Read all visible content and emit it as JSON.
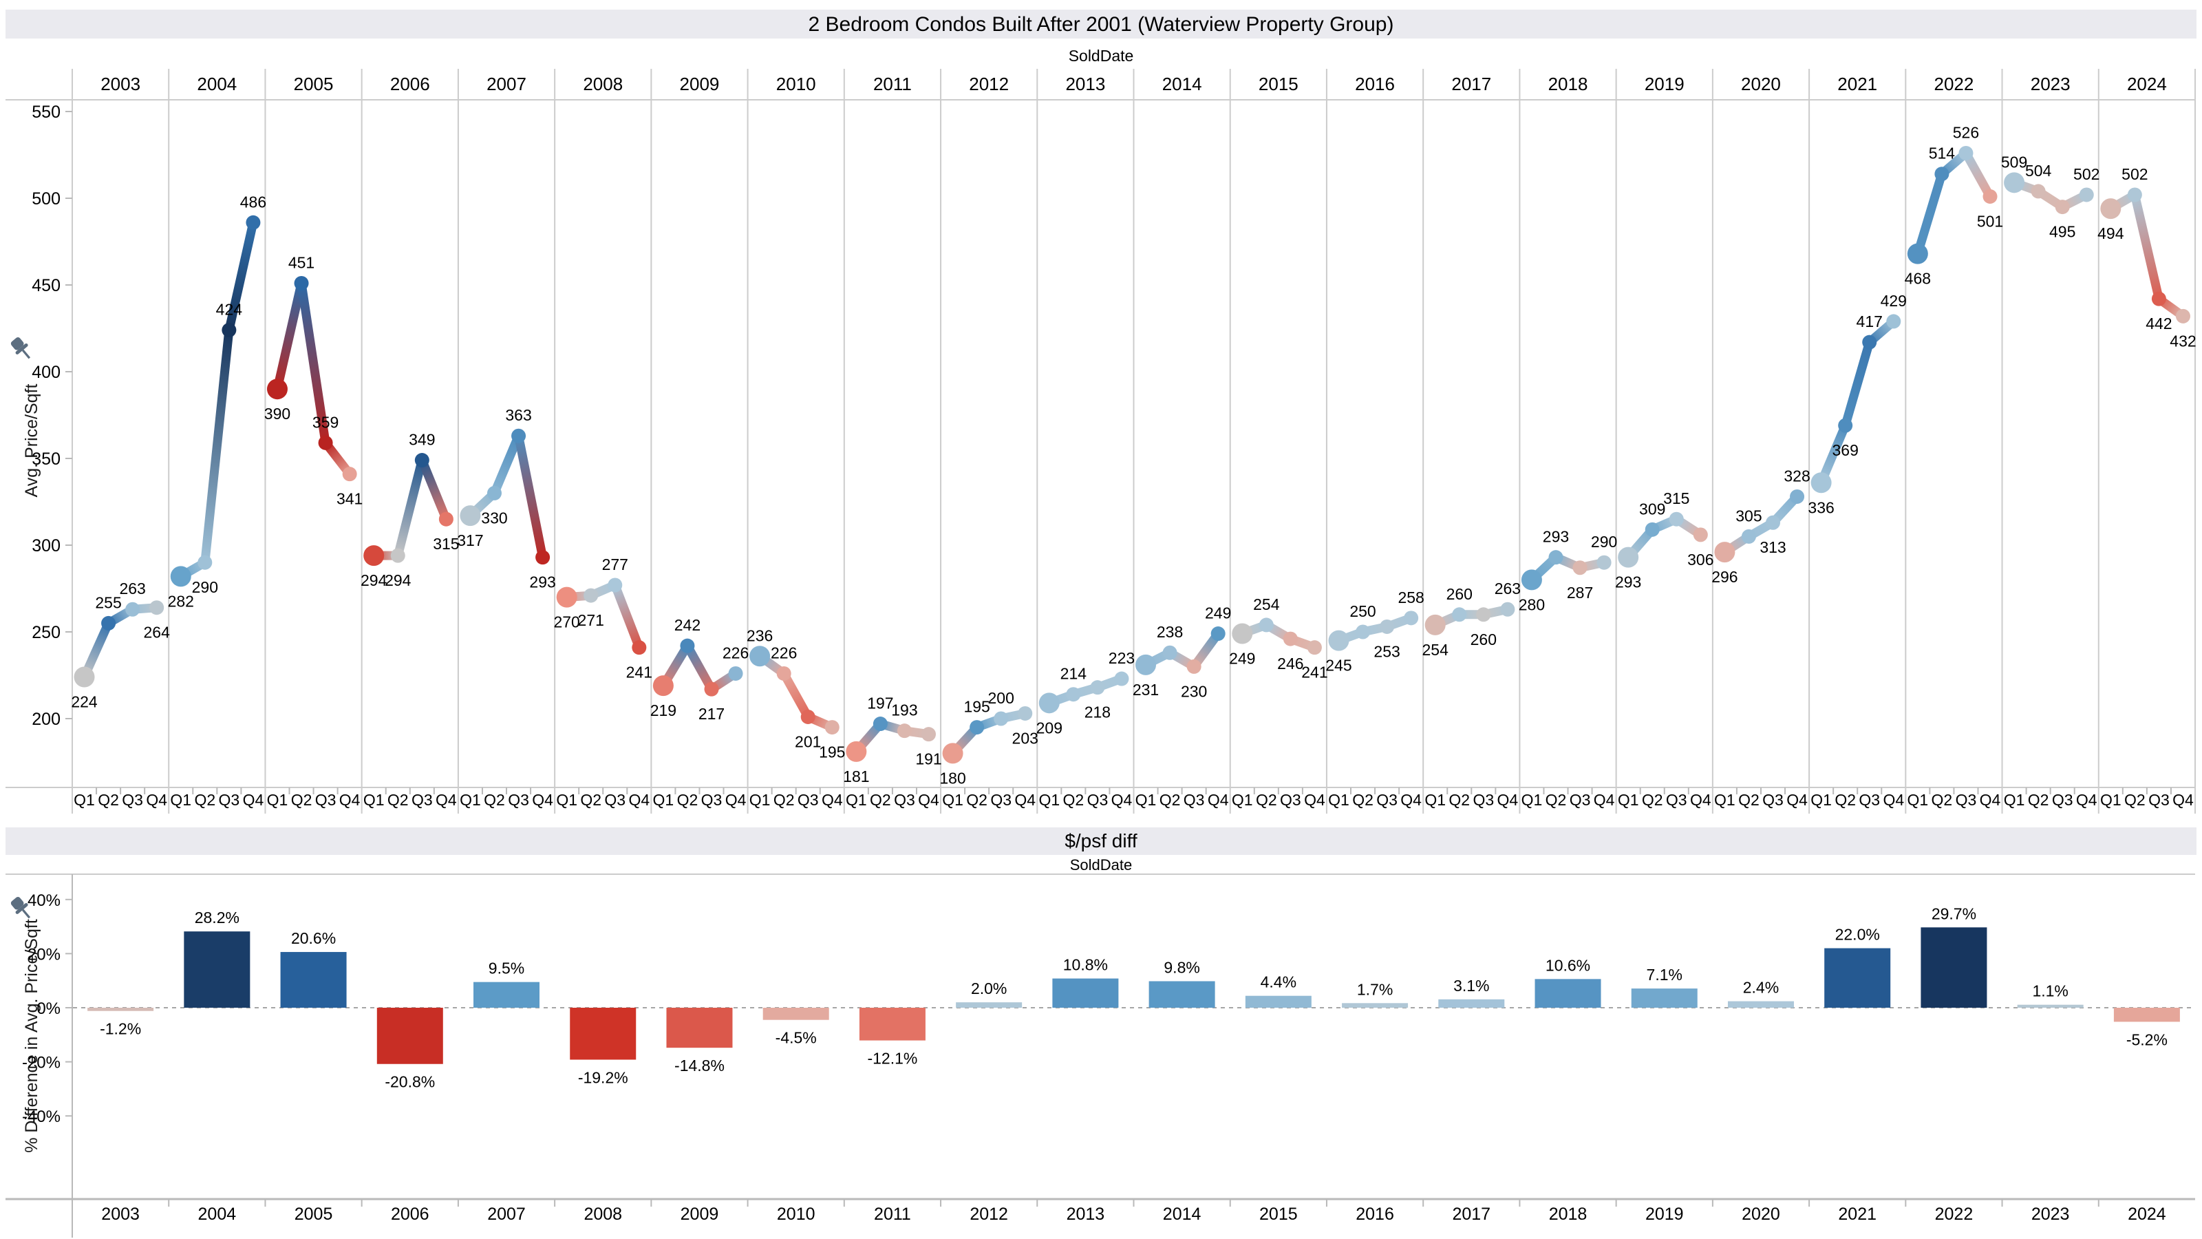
{
  "ui": {
    "pin_icon": "pin-icon",
    "colors": {
      "neutral": "#c6c6c6",
      "band_bg": "#eaeaef",
      "separator": "#cccccc",
      "axis": "#b9b9b9",
      "zero_line": "#a6a6a6",
      "pin": "#5c6e80",
      "pos_anchors": [
        [
          0,
          "#c6c6c6"
        ],
        [
          0.3,
          "#aac7da"
        ],
        [
          0.55,
          "#5f9ec9"
        ],
        [
          0.8,
          "#2a67a5"
        ],
        [
          1,
          "#17355d"
        ]
      ],
      "neg_anchors": [
        [
          0,
          "#c6c6c6"
        ],
        [
          0.3,
          "#ddb6ad"
        ],
        [
          0.55,
          "#ee9384"
        ],
        [
          0.8,
          "#cf3327"
        ],
        [
          1,
          "#a3141a"
        ]
      ]
    }
  },
  "chart_data": [
    {
      "type": "line",
      "title": "2 Bedroom Condos Built After 2001 (Waterview Property Group)",
      "x_header": "SoldDate",
      "ylabel": "Avg. Price/Sqft",
      "ylim": [
        200,
        550
      ],
      "yticks": [
        550,
        500,
        450,
        400,
        350,
        300,
        250,
        200
      ],
      "grid": "year-column-separators, no horizontal gridlines",
      "legend": "none",
      "color_encoding": "quarter-over-quarter change: blue = rising, red = falling, gray = flat",
      "quarter_labels": [
        "Q1",
        "Q2",
        "Q3",
        "Q4"
      ],
      "series": [
        {
          "year": "2003",
          "values": [
            224,
            255,
            263,
            264
          ],
          "label_pos": [
            "b",
            "a",
            "a",
            "b"
          ]
        },
        {
          "year": "2004",
          "values": [
            282,
            290,
            424,
            486
          ],
          "label_pos": [
            "b",
            "b",
            "a",
            "a"
          ]
        },
        {
          "year": "2005",
          "values": [
            390,
            451,
            359,
            341
          ],
          "label_pos": [
            "b",
            "a",
            "a",
            "b"
          ]
        },
        {
          "year": "2006",
          "values": [
            294,
            294,
            349,
            315
          ],
          "label_pos": [
            "b",
            "b",
            "a",
            "b"
          ]
        },
        {
          "year": "2007",
          "values": [
            317,
            330,
            363,
            293
          ],
          "label_pos": [
            "b",
            "b",
            "a",
            "b"
          ]
        },
        {
          "year": "2008",
          "values": [
            270,
            271,
            277,
            241
          ],
          "label_pos": [
            "b",
            "b",
            "a",
            "b"
          ]
        },
        {
          "year": "2009",
          "values": [
            219,
            242,
            217,
            226
          ],
          "label_pos": [
            "b",
            "a",
            "b",
            "a"
          ]
        },
        {
          "year": "2010",
          "values": [
            236,
            226,
            201,
            195
          ],
          "label_pos": [
            "a",
            "a",
            "b",
            "b"
          ]
        },
        {
          "year": "2011",
          "values": [
            181,
            197,
            193,
            191
          ],
          "label_pos": [
            "b",
            "a",
            "a",
            "b"
          ]
        },
        {
          "year": "2012",
          "values": [
            180,
            195,
            200,
            203
          ],
          "label_pos": [
            "b",
            "a",
            "a",
            "b"
          ]
        },
        {
          "year": "2013",
          "values": [
            209,
            214,
            218,
            223
          ],
          "label_pos": [
            "b",
            "a",
            "b",
            "a"
          ]
        },
        {
          "year": "2014",
          "values": [
            231,
            238,
            230,
            249
          ],
          "label_pos": [
            "b",
            "a",
            "b",
            "a"
          ]
        },
        {
          "year": "2015",
          "values": [
            249,
            254,
            246,
            241
          ],
          "label_pos": [
            "b",
            "a",
            "b",
            "b"
          ]
        },
        {
          "year": "2016",
          "values": [
            245,
            250,
            253,
            258
          ],
          "label_pos": [
            "b",
            "a",
            "b",
            "a"
          ]
        },
        {
          "year": "2017",
          "values": [
            254,
            260,
            260,
            263
          ],
          "label_pos": [
            "b",
            "a",
            "b",
            "a"
          ]
        },
        {
          "year": "2018",
          "values": [
            280,
            293,
            287,
            290
          ],
          "label_pos": [
            "b",
            "a",
            "b",
            "a"
          ]
        },
        {
          "year": "2019",
          "values": [
            293,
            309,
            315,
            306
          ],
          "label_pos": [
            "b",
            "a",
            "a",
            "b"
          ]
        },
        {
          "year": "2020",
          "values": [
            296,
            305,
            313,
            328
          ],
          "label_pos": [
            "b",
            "a",
            "b",
            "a"
          ]
        },
        {
          "year": "2021",
          "values": [
            336,
            369,
            417,
            429
          ],
          "label_pos": [
            "b",
            "b",
            "a",
            "a"
          ]
        },
        {
          "year": "2022",
          "values": [
            468,
            514,
            526,
            501
          ],
          "label_pos": [
            "b",
            "a",
            "a",
            "b"
          ]
        },
        {
          "year": "2023",
          "values": [
            509,
            504,
            495,
            502
          ],
          "label_pos": [
            "a",
            "a",
            "b",
            "a"
          ]
        },
        {
          "year": "2024",
          "values": [
            494,
            502,
            442,
            432
          ],
          "label_pos": [
            "b",
            "a",
            "b",
            "b"
          ]
        }
      ]
    },
    {
      "type": "bar",
      "title": "$/psf diff",
      "x_header": "SoldDate",
      "ylabel": "% Difference in Avg. Price/Sqft",
      "ylim": [
        -45,
        45
      ],
      "ytick_labels": [
        "40%",
        "20%",
        "0%",
        "-20%",
        "-40%"
      ],
      "ytick_values": [
        40,
        20,
        0,
        -20,
        -40
      ],
      "zero_line": "dashed",
      "categories": [
        "2003",
        "2004",
        "2005",
        "2006",
        "2007",
        "2008",
        "2009",
        "2010",
        "2011",
        "2012",
        "2013",
        "2014",
        "2015",
        "2016",
        "2017",
        "2018",
        "2019",
        "2020",
        "2021",
        "2022",
        "2023",
        "2024"
      ],
      "values": [
        -1.2,
        28.2,
        20.6,
        -20.8,
        9.5,
        -19.2,
        -14.8,
        -4.5,
        -12.1,
        2.0,
        10.8,
        9.8,
        4.4,
        1.7,
        3.1,
        10.6,
        7.1,
        2.4,
        22.0,
        29.7,
        1.1,
        -5.2
      ],
      "labels": [
        "-1.2%",
        "28.2%",
        "20.6%",
        "-20.8%",
        "9.5%",
        "-19.2%",
        "-14.8%",
        "-4.5%",
        "-12.1%",
        "2.0%",
        "10.8%",
        "9.8%",
        "4.4%",
        "1.7%",
        "3.1%",
        "10.6%",
        "7.1%",
        "2.4%",
        "22.0%",
        "29.7%",
        "1.1%",
        "-5.2%"
      ]
    }
  ]
}
